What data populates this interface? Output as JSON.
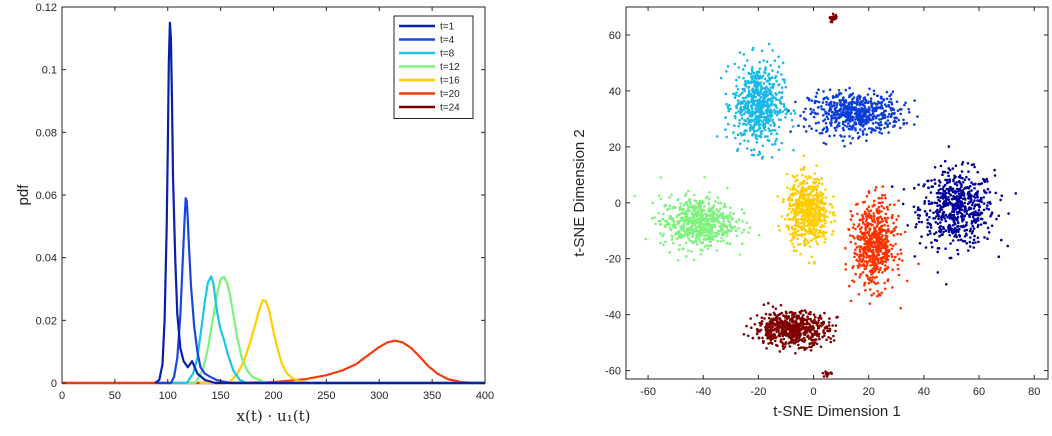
{
  "chart_data": [
    {
      "type": "line",
      "xlabel": "x(t) · u₁(t)",
      "ylabel": "pdf",
      "xlim": [
        0,
        400
      ],
      "ylim": [
        0,
        0.12
      ],
      "xticks": [
        0,
        50,
        100,
        150,
        200,
        250,
        300,
        350,
        400
      ],
      "yticks": [
        0,
        0.02,
        0.04,
        0.06,
        0.08,
        0.1,
        0.12
      ],
      "ytick_labels": [
        "0",
        "0.02",
        "0.04",
        "0.06",
        "0.08",
        "0.1",
        "0.12"
      ],
      "legend_position": "top-right",
      "series": [
        {
          "name": "t=1",
          "color": "#0a1fa8",
          "x": [
            88,
            92,
            95,
            97,
            99,
            100,
            101,
            102,
            103,
            104,
            105,
            107,
            109,
            112,
            115,
            119,
            123,
            128,
            135,
            145,
            400
          ],
          "y": [
            0,
            0.001,
            0.006,
            0.02,
            0.05,
            0.075,
            0.102,
            0.115,
            0.11,
            0.09,
            0.066,
            0.04,
            0.022,
            0.011,
            0.007,
            0.005,
            0.007,
            0.003,
            0.001,
            0,
            0
          ]
        },
        {
          "name": "t=4",
          "color": "#1a46e0",
          "x": [
            90,
            103,
            106,
            109,
            112,
            114,
            116,
            117,
            118,
            119,
            120,
            122,
            125,
            128,
            131,
            135,
            140,
            146,
            152,
            160,
            400
          ],
          "y": [
            0,
            0.0,
            0.002,
            0.008,
            0.022,
            0.038,
            0.053,
            0.059,
            0.058,
            0.052,
            0.044,
            0.031,
            0.018,
            0.01,
            0.005,
            0.003,
            0.002,
            0.001,
            0.0005,
            0,
            0
          ]
        },
        {
          "name": "t=8",
          "color": "#1cc4e8",
          "x": [
            100,
            118,
            124,
            128,
            132,
            135,
            138,
            141,
            143,
            145,
            147,
            150,
            153,
            157,
            162,
            168,
            175,
            400
          ],
          "y": [
            0,
            0.0,
            0.003,
            0.008,
            0.018,
            0.026,
            0.032,
            0.034,
            0.032,
            0.027,
            0.022,
            0.017,
            0.014,
            0.009,
            0.004,
            0.001,
            0,
            0
          ]
        },
        {
          "name": "t=12",
          "color": "#7cf27a",
          "x": [
            110,
            126,
            133,
            138,
            143,
            147,
            150,
            153,
            156,
            159,
            162,
            166,
            170,
            175,
            180,
            186,
            194,
            400
          ],
          "y": [
            0,
            0.0,
            0.004,
            0.011,
            0.021,
            0.029,
            0.033,
            0.034,
            0.032,
            0.028,
            0.022,
            0.014,
            0.008,
            0.004,
            0.002,
            0.001,
            0,
            0
          ]
        },
        {
          "name": "t=16",
          "color": "#ffcd00",
          "x": [
            130,
            158,
            166,
            172,
            178,
            183,
            187,
            190,
            193,
            196,
            199,
            203,
            208,
            213,
            218,
            225,
            235,
            400
          ],
          "y": [
            0,
            0.0,
            0.003,
            0.007,
            0.013,
            0.019,
            0.024,
            0.0265,
            0.026,
            0.023,
            0.018,
            0.012,
            0.006,
            0.003,
            0.0015,
            0.0005,
            0,
            0
          ]
        },
        {
          "name": "t=20",
          "color": "#f53a0c",
          "x": [
            0,
            150,
            200,
            230,
            250,
            265,
            278,
            290,
            300,
            308,
            315,
            322,
            330,
            338,
            346,
            355,
            365,
            378,
            390,
            400
          ],
          "y": [
            0,
            0,
            0.0003,
            0.0012,
            0.0025,
            0.004,
            0.006,
            0.009,
            0.0115,
            0.013,
            0.0135,
            0.013,
            0.0112,
            0.0085,
            0.0055,
            0.003,
            0.0012,
            0.0003,
            0.0001,
            0
          ]
        },
        {
          "name": "t=24",
          "color": "#800000",
          "x": [
            0,
            400
          ],
          "y": [
            0,
            0
          ]
        }
      ]
    },
    {
      "type": "scatter",
      "xlabel": "t-SNE Dimension 1",
      "ylabel": "t-SNE Dimension 2",
      "xlim": [
        -68,
        85
      ],
      "ylim": [
        -63,
        70
      ],
      "xticks": [
        -60,
        -40,
        -20,
        0,
        20,
        40,
        60,
        80
      ],
      "yticks": [
        -60,
        -40,
        -20,
        0,
        20,
        40,
        60
      ],
      "clusters": [
        {
          "color": "#000099",
          "center": [
            52,
            -2
          ],
          "spread": [
            9,
            9
          ],
          "count": 600
        },
        {
          "color": "#0b3ddb",
          "center": [
            15,
            32
          ],
          "spread": [
            11,
            5
          ],
          "count": 600
        },
        {
          "color": "#1ab8e6",
          "center": [
            -20,
            35
          ],
          "spread": [
            6,
            10
          ],
          "count": 600
        },
        {
          "color": "#7df27d",
          "center": [
            -42,
            -7
          ],
          "spread": [
            9,
            6
          ],
          "count": 600
        },
        {
          "color": "#ffcc00",
          "center": [
            -2,
            -3
          ],
          "spread": [
            5,
            8
          ],
          "count": 600
        },
        {
          "color": "#ff3300",
          "center": [
            22,
            -15
          ],
          "spread": [
            5,
            10
          ],
          "count": 600
        },
        {
          "color": "#800000",
          "center": [
            -8,
            -45
          ],
          "spread": [
            9,
            4
          ],
          "count": 600
        },
        {
          "color": "#800000",
          "center": [
            7,
            66
          ],
          "spread": [
            1,
            1
          ],
          "count": 25
        },
        {
          "color": "#800000",
          "center": [
            5,
            -61
          ],
          "spread": [
            1,
            0.6
          ],
          "count": 15
        }
      ]
    }
  ]
}
